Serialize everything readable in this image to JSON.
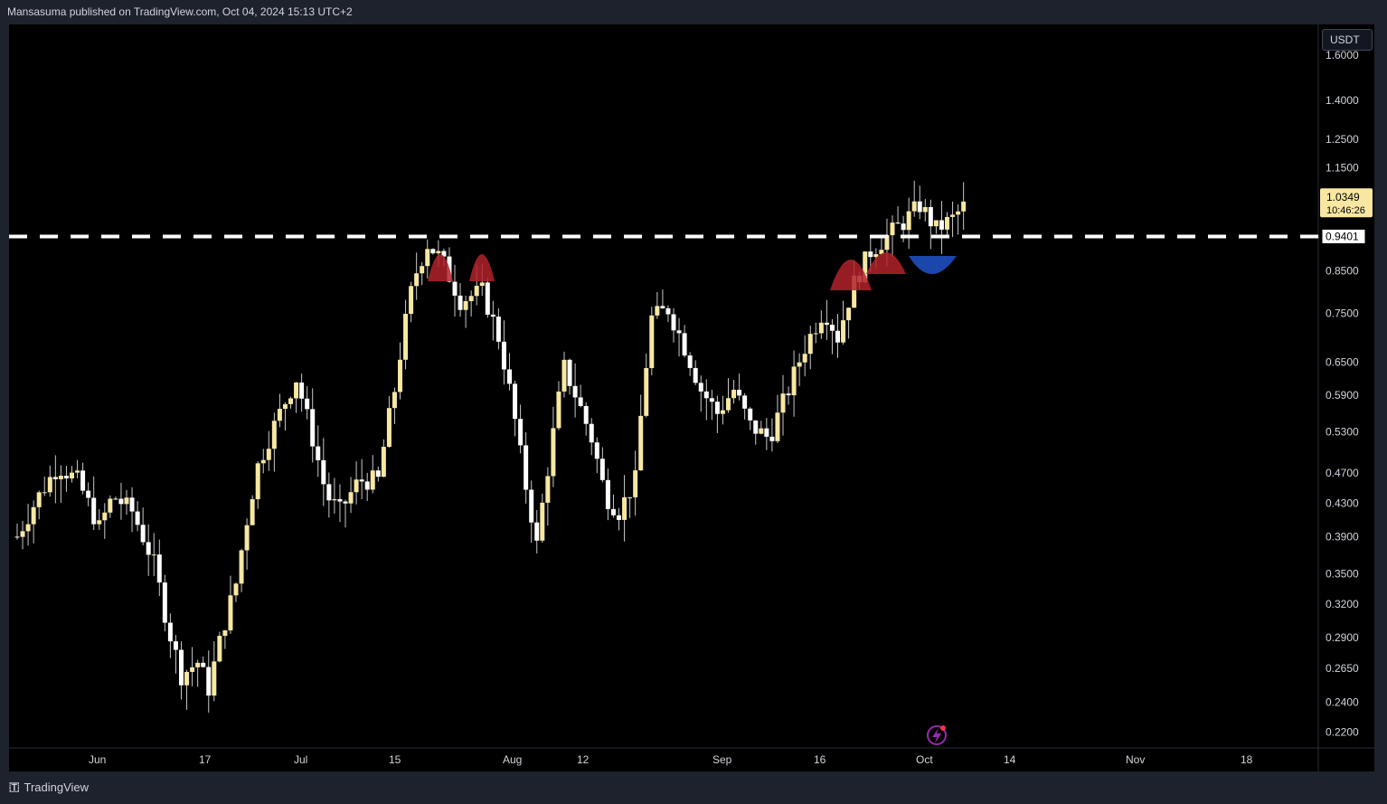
{
  "header": {
    "title": "Mansasuma published on TradingView.com, Oct 04, 2024 15:13 UTC+2"
  },
  "price_scale": {
    "currency": "USDT",
    "ticks": [
      "1.6000",
      "1.4000",
      "1.2500",
      "1.1500",
      "0.8500",
      "0.7500",
      "0.6500",
      "0.5900",
      "0.5300",
      "0.4700",
      "0.4300",
      "0.3900",
      "0.3500",
      "0.3200",
      "0.2900",
      "0.2650",
      "0.2400",
      "0.2200"
    ],
    "last_price": "1.0349",
    "countdown": "10:46:26",
    "line_price_label": "0.9401"
  },
  "time_scale": {
    "ticks": [
      "Jun",
      "17",
      "Jul",
      "15",
      "Aug",
      "12",
      "Sep",
      "16",
      "Oct",
      "14",
      "Nov",
      "18"
    ]
  },
  "footer": {
    "brand": "TradingView"
  },
  "colors": {
    "background": "#000000",
    "bull_candle": "#f7e7a1",
    "bear_candle": "#ffffff",
    "wick": "#c8c8c8",
    "resistance_line": "#ffffff",
    "top_marker": "#b2222a",
    "bottom_marker": "#1e4fbf",
    "last_price_badge": "#f7e7a1"
  },
  "chart_data": {
    "type": "candlestick",
    "scale": "log",
    "ylim": [
      0.21,
      1.75
    ],
    "horizontal_line": 0.9401,
    "x_labels": [
      "Jun",
      "17",
      "Jul",
      "15",
      "Aug",
      "12",
      "Sep",
      "16",
      "Oct",
      "14",
      "Nov",
      "18"
    ],
    "ohlc_sample": {
      "first_close": 0.39,
      "low": 0.21,
      "high": 1.08,
      "last_close": 1.0349
    },
    "markers": [
      {
        "type": "top",
        "color": "red"
      },
      {
        "type": "top",
        "color": "red"
      },
      {
        "type": "top",
        "color": "red"
      },
      {
        "type": "top",
        "color": "red"
      },
      {
        "type": "bottom",
        "color": "blue"
      }
    ]
  }
}
